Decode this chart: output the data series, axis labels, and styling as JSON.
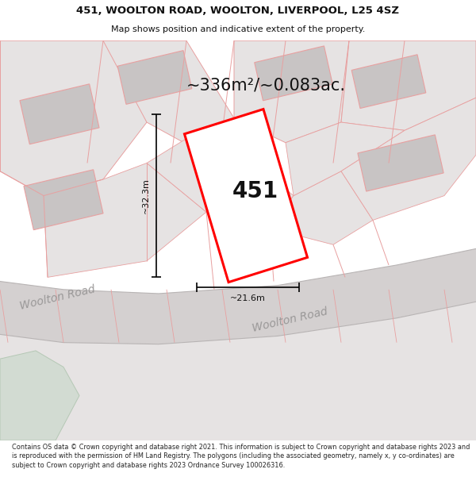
{
  "title_line1": "451, WOOLTON ROAD, WOOLTON, LIVERPOOL, L25 4SZ",
  "title_line2": "Map shows position and indicative extent of the property.",
  "area_text": "~336m²/~0.083ac.",
  "property_number": "451",
  "dim_width": "~21.6m",
  "dim_height": "~32.3m",
  "road_label1": "Woolton Road",
  "road_label2": "Woolton Road",
  "footer_text": "Contains OS data © Crown copyright and database right 2021. This information is subject to Crown copyright and database rights 2023 and is reproduced with the permission of HM Land Registry. The polygons (including the associated geometry, namely x, y co-ordinates) are subject to Crown copyright and database rights 2023 Ordnance Survey 100026316.",
  "map_bg": "#eeecec",
  "road_fill": "#d4d0d0",
  "building_fill": "#c8c4c4",
  "green_fill": "#d2dbd2",
  "line_color": "#e8a0a0",
  "highlight_color": "#ff0000",
  "text_color": "#111111",
  "footer_color": "#222222",
  "title_fontsize": 9.5,
  "subtitle_fontsize": 8.0,
  "area_fontsize": 15,
  "prop_num_fontsize": 20,
  "dim_fontsize": 8,
  "road_fontsize": 10
}
